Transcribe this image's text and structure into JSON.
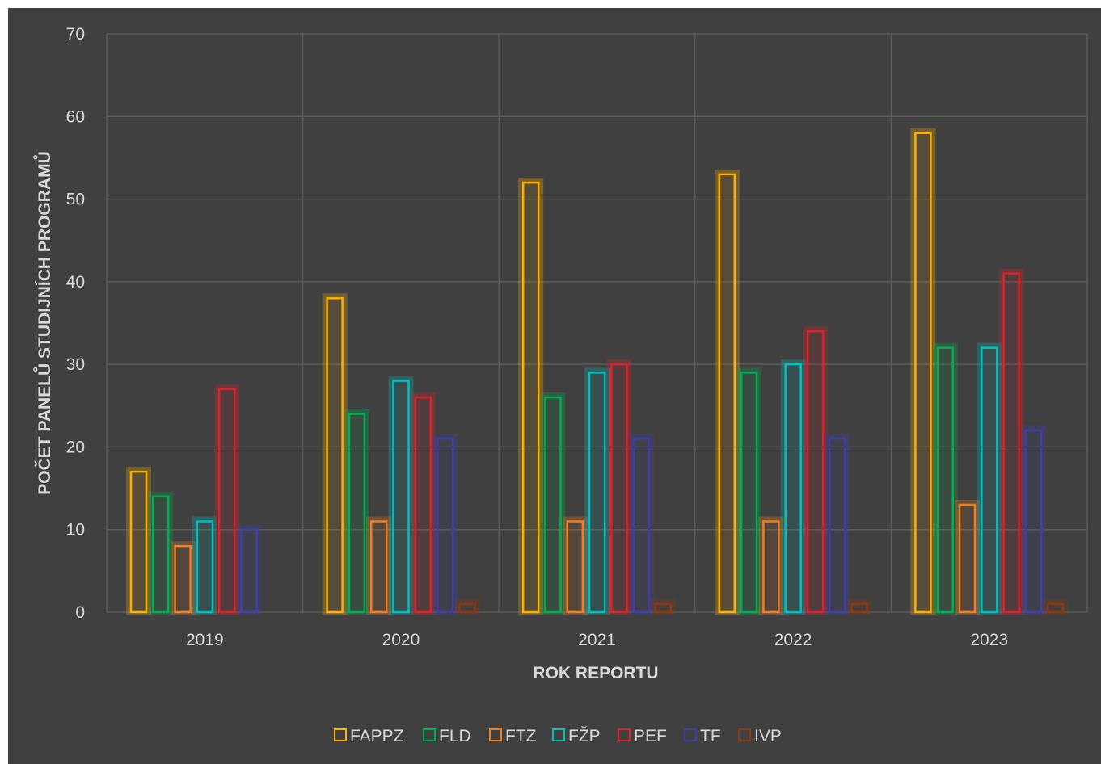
{
  "chart_data": {
    "type": "bar",
    "title": "",
    "xlabel": "ROK REPORTU",
    "ylabel": "POČET PANELŮ STUDIJNÍCH PROGRAMŮ",
    "ylim": [
      0,
      70
    ],
    "yticks": [
      0,
      10,
      20,
      30,
      40,
      50,
      60,
      70
    ],
    "grid": true,
    "legend_position": "bottom",
    "categories": [
      "2019",
      "2020",
      "2021",
      "2022",
      "2023"
    ],
    "series": [
      {
        "name": "FAPPZ",
        "color": "#ffb000",
        "values": [
          17,
          38,
          52,
          53,
          58
        ]
      },
      {
        "name": "FLD",
        "color": "#00b050",
        "values": [
          14,
          24,
          26,
          29,
          32
        ]
      },
      {
        "name": "FTZ",
        "color": "#f07f20",
        "values": [
          8,
          11,
          11,
          11,
          13
        ]
      },
      {
        "name": "FŽP",
        "color": "#00c0c0",
        "values": [
          11,
          28,
          29,
          30,
          32
        ]
      },
      {
        "name": "PEF",
        "color": "#e0202a",
        "values": [
          27,
          26,
          30,
          34,
          41
        ]
      },
      {
        "name": "TF",
        "color": "#3f3fa8",
        "values": [
          10,
          21,
          21,
          21,
          22
        ]
      },
      {
        "name": "IVP",
        "color": "#8a3a12",
        "values": [
          0,
          1,
          1,
          1,
          1
        ]
      }
    ]
  }
}
